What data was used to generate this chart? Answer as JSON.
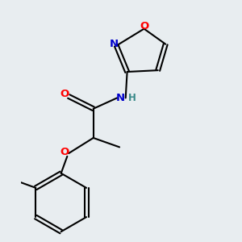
{
  "background_color": "#e8edf0",
  "bond_color": "#000000",
  "atom_colors": {
    "O": "#ff0000",
    "N": "#0000cc",
    "H": "#3a8a8a",
    "C": "#000000"
  },
  "figsize": [
    3.0,
    3.0
  ],
  "dpi": 100
}
